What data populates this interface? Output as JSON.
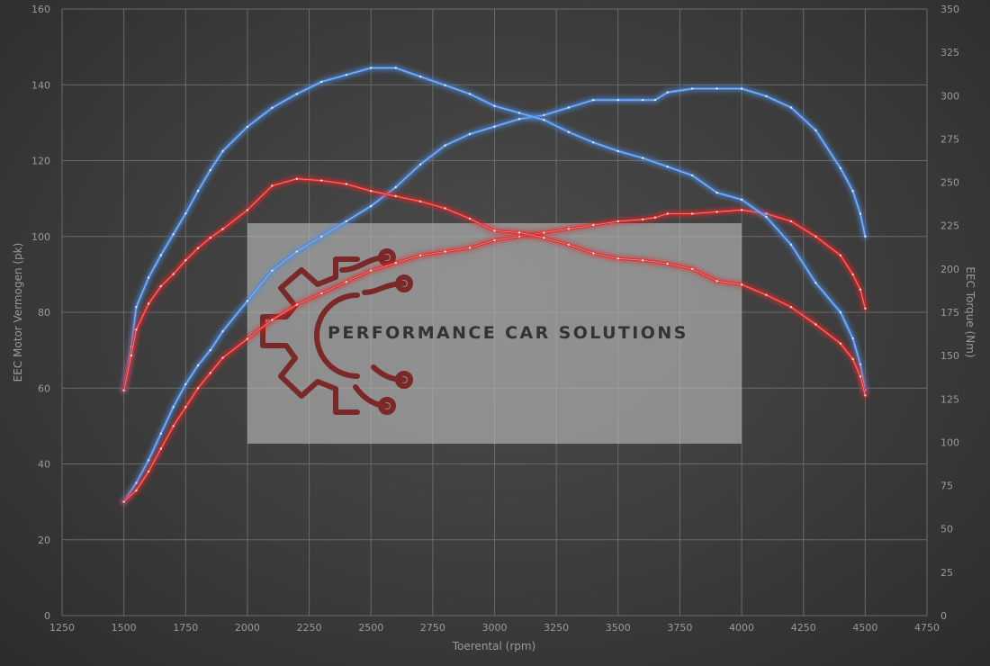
{
  "chart_data": {
    "type": "line",
    "xlabel": "Toerental (rpm)",
    "ylabel": "EEC Motor Vermogen (pk)",
    "y2label": "EEC Torque (Nm)",
    "xlim": [
      1250,
      4750
    ],
    "ylim": [
      0,
      160
    ],
    "y2lim": [
      0,
      350
    ],
    "x_ticks": [
      1250,
      1500,
      1750,
      2000,
      2250,
      2500,
      2750,
      3000,
      3250,
      3500,
      3750,
      4000,
      4250,
      4500,
      4750
    ],
    "y_ticks": [
      0,
      20,
      40,
      60,
      80,
      100,
      120,
      140,
      160
    ],
    "y2_ticks": [
      0,
      25,
      50,
      75,
      100,
      125,
      150,
      175,
      200,
      225,
      250,
      275,
      300,
      325,
      350
    ],
    "grid": true,
    "series": [
      {
        "axis": "left",
        "color": "#4a8ae0",
        "points": [
          [
            1500,
            30
          ],
          [
            1550,
            35
          ],
          [
            1600,
            41
          ],
          [
            1650,
            48
          ],
          [
            1700,
            55
          ],
          [
            1750,
            61
          ],
          [
            1800,
            66
          ],
          [
            1850,
            70
          ],
          [
            1900,
            75
          ],
          [
            2000,
            83
          ],
          [
            2100,
            91
          ],
          [
            2200,
            96
          ],
          [
            2300,
            100
          ],
          [
            2400,
            104
          ],
          [
            2500,
            108
          ],
          [
            2600,
            113
          ],
          [
            2700,
            119
          ],
          [
            2800,
            124
          ],
          [
            2900,
            127
          ],
          [
            3000,
            129
          ],
          [
            3100,
            131
          ],
          [
            3200,
            132
          ],
          [
            3300,
            134
          ],
          [
            3400,
            136
          ],
          [
            3500,
            136
          ],
          [
            3600,
            136
          ],
          [
            3650,
            136
          ],
          [
            3700,
            138
          ],
          [
            3800,
            139
          ],
          [
            3900,
            139
          ],
          [
            4000,
            139
          ],
          [
            4100,
            137
          ],
          [
            4200,
            134
          ],
          [
            4300,
            128
          ],
          [
            4400,
            118
          ],
          [
            4450,
            112
          ],
          [
            4480,
            106
          ],
          [
            4500,
            100
          ]
        ]
      },
      {
        "axis": "left",
        "color": "#e02828",
        "points": [
          [
            1500,
            30
          ],
          [
            1550,
            33
          ],
          [
            1600,
            38
          ],
          [
            1650,
            44
          ],
          [
            1700,
            50
          ],
          [
            1750,
            55
          ],
          [
            1800,
            60
          ],
          [
            1850,
            64
          ],
          [
            1900,
            68
          ],
          [
            2000,
            73
          ],
          [
            2100,
            78
          ],
          [
            2200,
            82
          ],
          [
            2300,
            85
          ],
          [
            2400,
            88
          ],
          [
            2500,
            91
          ],
          [
            2600,
            93
          ],
          [
            2700,
            95
          ],
          [
            2800,
            96
          ],
          [
            2900,
            97
          ],
          [
            3000,
            99
          ],
          [
            3100,
            100
          ],
          [
            3200,
            101
          ],
          [
            3300,
            102
          ],
          [
            3400,
            103
          ],
          [
            3500,
            104
          ],
          [
            3600,
            104.5
          ],
          [
            3650,
            105
          ],
          [
            3700,
            106
          ],
          [
            3800,
            106
          ],
          [
            3900,
            106.5
          ],
          [
            4000,
            107
          ],
          [
            4100,
            106
          ],
          [
            4200,
            104
          ],
          [
            4300,
            100
          ],
          [
            4400,
            95
          ],
          [
            4450,
            90
          ],
          [
            4480,
            86
          ],
          [
            4500,
            81
          ]
        ]
      },
      {
        "axis": "right",
        "color": "#4a8ae0",
        "points": [
          [
            1500,
            130
          ],
          [
            1530,
            155
          ],
          [
            1550,
            178
          ],
          [
            1600,
            195
          ],
          [
            1650,
            208
          ],
          [
            1700,
            220
          ],
          [
            1750,
            232
          ],
          [
            1800,
            245
          ],
          [
            1850,
            257
          ],
          [
            1900,
            268
          ],
          [
            2000,
            282
          ],
          [
            2100,
            293
          ],
          [
            2200,
            301
          ],
          [
            2300,
            308
          ],
          [
            2400,
            312
          ],
          [
            2500,
            316
          ],
          [
            2600,
            316
          ],
          [
            2700,
            311
          ],
          [
            2800,
            306
          ],
          [
            2900,
            301
          ],
          [
            3000,
            294
          ],
          [
            3100,
            290
          ],
          [
            3200,
            286
          ],
          [
            3300,
            279
          ],
          [
            3400,
            273
          ],
          [
            3500,
            268
          ],
          [
            3600,
            264
          ],
          [
            3700,
            259
          ],
          [
            3800,
            254
          ],
          [
            3900,
            244
          ],
          [
            4000,
            240
          ],
          [
            4100,
            230
          ],
          [
            4200,
            214
          ],
          [
            4300,
            192
          ],
          [
            4400,
            175
          ],
          [
            4450,
            160
          ],
          [
            4480,
            145
          ],
          [
            4500,
            130
          ]
        ]
      },
      {
        "axis": "right",
        "color": "#e02828",
        "points": [
          [
            1500,
            130
          ],
          [
            1530,
            150
          ],
          [
            1550,
            165
          ],
          [
            1600,
            180
          ],
          [
            1650,
            190
          ],
          [
            1700,
            197
          ],
          [
            1750,
            205
          ],
          [
            1800,
            212
          ],
          [
            1850,
            218
          ],
          [
            1900,
            223
          ],
          [
            2000,
            234
          ],
          [
            2100,
            248
          ],
          [
            2200,
            252
          ],
          [
            2300,
            251
          ],
          [
            2400,
            249
          ],
          [
            2500,
            245
          ],
          [
            2600,
            242
          ],
          [
            2700,
            239
          ],
          [
            2800,
            235
          ],
          [
            2900,
            229
          ],
          [
            3000,
            222
          ],
          [
            3100,
            221
          ],
          [
            3200,
            218
          ],
          [
            3300,
            214
          ],
          [
            3400,
            209
          ],
          [
            3500,
            206
          ],
          [
            3600,
            205
          ],
          [
            3700,
            203
          ],
          [
            3800,
            200
          ],
          [
            3900,
            193
          ],
          [
            4000,
            191
          ],
          [
            4100,
            185
          ],
          [
            4200,
            178
          ],
          [
            4300,
            168
          ],
          [
            4400,
            157
          ],
          [
            4450,
            148
          ],
          [
            4480,
            138
          ],
          [
            4500,
            127
          ]
        ]
      }
    ]
  },
  "watermark": {
    "text": "PERFORMANCE CAR SOLUTIONS",
    "logo_icon": "gear-circuit-icon",
    "logo_color": "#7a2828"
  }
}
